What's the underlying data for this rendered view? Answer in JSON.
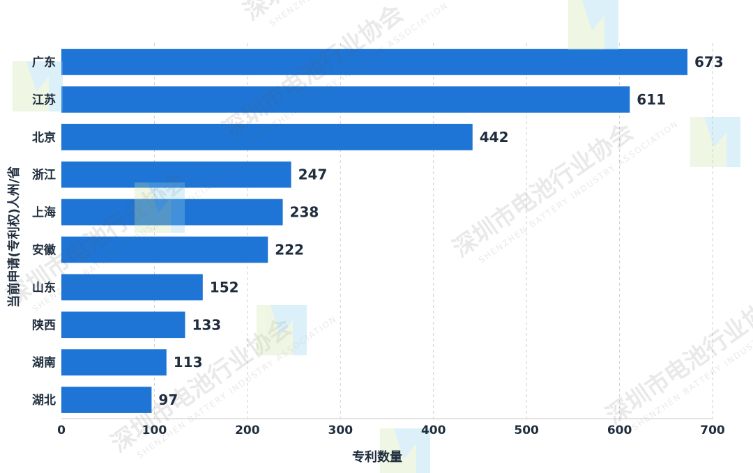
{
  "chart_data": {
    "type": "bar",
    "orientation": "horizontal",
    "categories": [
      "广东",
      "江苏",
      "北京",
      "浙江",
      "上海",
      "安徽",
      "山东",
      "陕西",
      "湖南",
      "湖北"
    ],
    "values": [
      673,
      611,
      442,
      247,
      238,
      222,
      152,
      133,
      113,
      97
    ],
    "xlabel": "专利数量",
    "ylabel": "当前申请(专利权)人州/省",
    "xlim": [
      0,
      700
    ],
    "xticks": [
      0,
      100,
      200,
      300,
      400,
      500,
      600,
      700
    ],
    "grid": "vertical-dashed",
    "bar_color": "#1f75d6"
  },
  "watermark": {
    "text_cn": "深圳市电池行业协会",
    "text_en": "SHENZHEN BATTERY INDUSTRY ASSOCIATION"
  }
}
